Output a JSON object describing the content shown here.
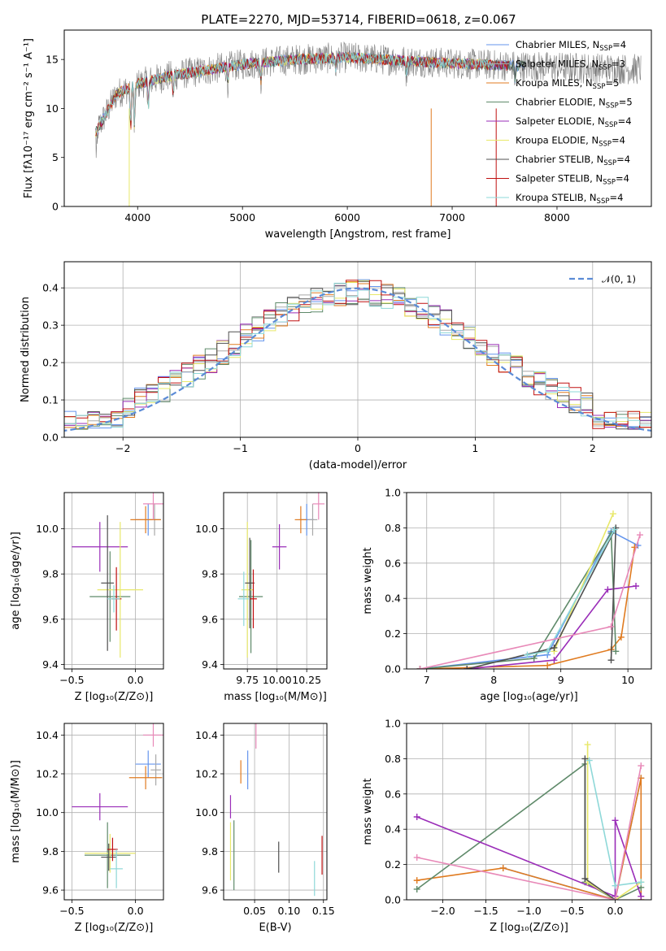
{
  "figure": {
    "title": "PLATE=2270, MJD=53714, FIBERID=0618, z=0.067"
  },
  "palette": [
    "#6495ED",
    "#A9A9A9",
    "#E07B20",
    "#5F8A6A",
    "#9A2DB8",
    "#E8E86A",
    "#505050",
    "#C01010",
    "#8ED8D8"
  ],
  "chart_data": [
    {
      "id": "spectrum",
      "type": "line",
      "xlabel": "wavelength [Angstrom, rest frame]",
      "ylabel": "Flux [fλ10⁻¹⁷ erg cm⁻² s⁻¹ A⁻¹]",
      "xlim": [
        3300,
        8900
      ],
      "ylim": [
        0,
        18
      ],
      "xticks": [
        4000,
        5000,
        6000,
        7000,
        8000
      ],
      "yticks": [
        0,
        5,
        10,
        15
      ],
      "grid": false,
      "legend": "top-right",
      "x_range": [
        3600,
        7700
      ],
      "data_line_color": "#808080",
      "data_line_x_range": [
        3600,
        8800
      ],
      "series": [
        {
          "name": "Chabrier MILES, N_SSP=4",
          "label": "Chabrier MILES, N",
          "sub": "SSP",
          "suffix": "=4",
          "color": "#6495ED"
        },
        {
          "name": "Salpeter MILES, N_SSP=3",
          "label": "Salpeter MILES, N",
          "sub": "SSP",
          "suffix": "=3",
          "color": "#A9A9A9"
        },
        {
          "name": "Kroupa MILES, N_SSP=5",
          "label": "Kroupa MILES, N",
          "sub": "SSP",
          "suffix": "=5",
          "color": "#E07B20"
        },
        {
          "name": "Chabrier ELODIE, N_SSP=5",
          "label": "Chabrier ELODIE, N",
          "sub": "SSP",
          "suffix": "=5",
          "color": "#5F8A6A"
        },
        {
          "name": "Salpeter ELODIE, N_SSP=4",
          "label": "Salpeter ELODIE, N",
          "sub": "SSP",
          "suffix": "=4",
          "color": "#9A2DB8"
        },
        {
          "name": "Kroupa ELODIE, N_SSP=4",
          "label": "Kroupa ELODIE, N",
          "sub": "SSP",
          "suffix": "=4",
          "color": "#E8E86A"
        },
        {
          "name": "Chabrier STELIB, N_SSP=4",
          "label": "Chabrier STELIB, N",
          "sub": "SSP",
          "suffix": "=4",
          "color": "#505050"
        },
        {
          "name": "Salpeter STELIB, N_SSP=4",
          "label": "Salpeter STELIB, N",
          "sub": "SSP",
          "suffix": "=4",
          "color": "#C01010"
        },
        {
          "name": "Kroupa STELIB, N_SSP=4",
          "label": "Kroupa STELIB, N",
          "sub": "SSP",
          "suffix": "=4",
          "color": "#8ED8D8"
        }
      ],
      "continuum": [
        [
          3600,
          7.5
        ],
        [
          3700,
          9.5
        ],
        [
          3800,
          11.5
        ],
        [
          4000,
          12.5
        ],
        [
          4300,
          13.3
        ],
        [
          4600,
          13.8
        ],
        [
          5000,
          14.5
        ],
        [
          5500,
          15.0
        ],
        [
          6000,
          15.2
        ],
        [
          6500,
          14.9
        ],
        [
          7000,
          14.6
        ],
        [
          7500,
          14.4
        ],
        [
          8000,
          14.2
        ],
        [
          8800,
          14.0
        ]
      ]
    },
    {
      "id": "residuals",
      "type": "step",
      "xlabel": "(data-model)/error",
      "ylabel": "Normed distribution",
      "xlim": [
        -2.5,
        2.5
      ],
      "ylim": [
        0,
        0.47
      ],
      "xticks": [
        -2,
        -1,
        0,
        1,
        2
      ],
      "yticks": [
        0.0,
        0.1,
        0.2,
        0.3,
        0.4
      ],
      "grid": true,
      "legend": "top-right",
      "reference": {
        "label": "𝒩(0, 1)",
        "color": "#5B8BD6",
        "style": "dashed"
      },
      "bin_width": 0.1
    },
    {
      "id": "age_vs_Z",
      "type": "errorbar",
      "xlabel": "Z [log₁₀(Z/Z⊙)]",
      "ylabel": "age  [log₁₀(age/yr)]",
      "xlim": [
        -0.56,
        0.22
      ],
      "ylim": [
        9.38,
        10.16
      ],
      "xticks": [
        -0.5,
        0.0
      ],
      "yticks": [
        9.4,
        9.6,
        9.8,
        10.0
      ],
      "grid": true,
      "points": [
        {
          "x": 0.1,
          "y": 10.04,
          "xerr": 0.1,
          "yerr": 0.07,
          "color": "#6495ED"
        },
        {
          "x": 0.15,
          "y": 10.04,
          "xerr": 0.05,
          "yerr": 0.07,
          "color": "#A9A9A9"
        },
        {
          "x": 0.08,
          "y": 10.04,
          "xerr": 0.12,
          "yerr": 0.06,
          "color": "#E07B20"
        },
        {
          "x": -0.2,
          "y": 9.7,
          "xerr": 0.16,
          "yerr": 0.2,
          "color": "#5F8A6A"
        },
        {
          "x": -0.28,
          "y": 9.92,
          "xerr": 0.22,
          "yerr": 0.11,
          "color": "#9A2DB8"
        },
        {
          "x": -0.12,
          "y": 9.73,
          "xerr": 0.18,
          "yerr": 0.3,
          "color": "#E8E86A"
        },
        {
          "x": -0.22,
          "y": 9.76,
          "xerr": 0.05,
          "yerr": 0.3,
          "color": "#505050"
        },
        {
          "x": -0.15,
          "y": 9.69,
          "xerr": 0.04,
          "yerr": 0.14,
          "color": "#C01010"
        },
        {
          "x": -0.17,
          "y": 9.69,
          "xerr": 0.05,
          "yerr": 0.06,
          "color": "#8ED8D8"
        },
        {
          "x": 0.14,
          "y": 10.11,
          "xerr": 0.08,
          "yerr": 0.07,
          "color": "#E889B8"
        }
      ]
    },
    {
      "id": "age_vs_mass",
      "type": "errorbar",
      "xlabel": "mass [log₁₀(M/M⊙)]",
      "ylabel": "",
      "xlim": [
        9.55,
        10.42
      ],
      "ylim": [
        9.38,
        10.16
      ],
      "xticks": [
        9.75,
        10.0,
        10.25
      ],
      "yticks": [
        9.4,
        9.6,
        9.8,
        10.0
      ],
      "grid": true,
      "points": [
        {
          "x": 10.25,
          "y": 10.04,
          "xerr": 0.06,
          "yerr": 0.07,
          "color": "#6495ED"
        },
        {
          "x": 10.3,
          "y": 10.04,
          "xerr": 0.04,
          "yerr": 0.07,
          "color": "#A9A9A9"
        },
        {
          "x": 10.2,
          "y": 10.04,
          "xerr": 0.05,
          "yerr": 0.06,
          "color": "#E07B20"
        },
        {
          "x": 9.78,
          "y": 9.7,
          "xerr": 0.1,
          "yerr": 0.25,
          "color": "#5F8A6A"
        },
        {
          "x": 10.02,
          "y": 9.92,
          "xerr": 0.06,
          "yerr": 0.1,
          "color": "#9A2DB8"
        },
        {
          "x": 9.75,
          "y": 9.73,
          "xerr": 0.05,
          "yerr": 0.3,
          "color": "#E8E86A"
        },
        {
          "x": 9.77,
          "y": 9.76,
          "xerr": 0.04,
          "yerr": 0.2,
          "color": "#505050"
        },
        {
          "x": 9.8,
          "y": 9.69,
          "xerr": 0.03,
          "yerr": 0.13,
          "color": "#C01010"
        },
        {
          "x": 9.72,
          "y": 9.69,
          "xerr": 0.05,
          "yerr": 0.12,
          "color": "#8ED8D8"
        },
        {
          "x": 10.35,
          "y": 10.11,
          "xerr": 0.05,
          "yerr": 0.07,
          "color": "#E889B8"
        }
      ]
    },
    {
      "id": "massweight_vs_age",
      "type": "line",
      "xlabel": "age  [log₁₀(age/yr)]",
      "ylabel": "mass weight",
      "xlim": [
        6.7,
        10.35
      ],
      "ylim": [
        0,
        1.0
      ],
      "xticks": [
        7,
        8,
        9,
        10
      ],
      "yticks": [
        0.0,
        0.2,
        0.4,
        0.6,
        0.8,
        1.0
      ],
      "grid": true,
      "series": [
        {
          "color": "#6495ED",
          "x": [
            6.9,
            8.8,
            9.75,
            10.15
          ],
          "y": [
            0.0,
            0.08,
            0.78,
            0.7
          ]
        },
        {
          "color": "#E07B20",
          "x": [
            6.9,
            8.8,
            9.75,
            9.9,
            10.1
          ],
          "y": [
            0.0,
            0.02,
            0.11,
            0.18,
            0.69
          ]
        },
        {
          "color": "#5F8A6A",
          "x": [
            6.9,
            8.6,
            9.75,
            9.82
          ],
          "y": [
            0.0,
            0.06,
            0.77,
            0.1
          ]
        },
        {
          "color": "#9A2DB8",
          "x": [
            7.6,
            8.9,
            9.7,
            10.12
          ],
          "y": [
            0.0,
            0.05,
            0.45,
            0.47
          ]
        },
        {
          "color": "#E8E86A",
          "x": [
            8.9,
            9.78
          ],
          "y": [
            0.1,
            0.88
          ]
        },
        {
          "color": "#505050",
          "x": [
            7.6,
            8.9,
            9.82,
            9.75
          ],
          "y": [
            0.0,
            0.12,
            0.8,
            0.05
          ]
        },
        {
          "color": "#8ED8D8",
          "x": [
            8.5,
            8.8,
            9.8
          ],
          "y": [
            0.08,
            0.1,
            0.79
          ]
        },
        {
          "color": "#E889B8",
          "x": [
            6.9,
            9.75,
            10.18
          ],
          "y": [
            0.0,
            0.24,
            0.76
          ]
        }
      ]
    },
    {
      "id": "mass_vs_Z",
      "type": "errorbar",
      "xlabel": "Z [log₁₀(Z/Z⊙)]",
      "ylabel": "mass [log₁₀(M/M⊙)]",
      "xlim": [
        -0.56,
        0.22
      ],
      "ylim": [
        9.55,
        10.46
      ],
      "xticks": [
        -0.5,
        0.0
      ],
      "yticks": [
        9.6,
        9.8,
        10.0,
        10.2,
        10.4
      ],
      "grid": true,
      "points": [
        {
          "x": 0.1,
          "y": 10.25,
          "xerr": 0.1,
          "yerr": 0.07,
          "color": "#6495ED"
        },
        {
          "x": 0.16,
          "y": 10.22,
          "xerr": 0.04,
          "yerr": 0.08,
          "color": "#A9A9A9"
        },
        {
          "x": 0.08,
          "y": 10.18,
          "xerr": 0.13,
          "yerr": 0.06,
          "color": "#E07B20"
        },
        {
          "x": -0.22,
          "y": 9.78,
          "xerr": 0.18,
          "yerr": 0.17,
          "color": "#5F8A6A"
        },
        {
          "x": -0.28,
          "y": 10.03,
          "xerr": 0.22,
          "yerr": 0.07,
          "color": "#9A2DB8"
        },
        {
          "x": -0.2,
          "y": 9.79,
          "xerr": 0.2,
          "yerr": 0.1,
          "color": "#E8E86A"
        },
        {
          "x": -0.21,
          "y": 9.77,
          "xerr": 0.06,
          "yerr": 0.07,
          "color": "#505050"
        },
        {
          "x": -0.18,
          "y": 9.81,
          "xerr": 0.04,
          "yerr": 0.06,
          "color": "#C01010"
        },
        {
          "x": -0.15,
          "y": 9.71,
          "xerr": 0.05,
          "yerr": 0.1,
          "color": "#8ED8D8"
        },
        {
          "x": 0.14,
          "y": 10.4,
          "xerr": 0.08,
          "yerr": 0.06,
          "color": "#E889B8"
        }
      ]
    },
    {
      "id": "mass_vs_EBV",
      "type": "errorbar",
      "xlabel": "E(B-V)",
      "ylabel": "",
      "xlim": [
        0.005,
        0.155
      ],
      "ylim": [
        9.55,
        10.46
      ],
      "xticks": [
        0.05,
        0.1,
        0.15
      ],
      "yticks": [
        9.6,
        9.8,
        10.0,
        10.2,
        10.4
      ],
      "grid": true,
      "points": [
        {
          "x": 0.04,
          "y": 10.22,
          "xerr": 0,
          "yerr": 0.1,
          "color": "#6495ED"
        },
        {
          "x": 0.03,
          "y": 10.21,
          "xerr": 0,
          "yerr": 0.06,
          "color": "#E07B20"
        },
        {
          "x": 0.02,
          "y": 9.78,
          "xerr": 0,
          "yerr": 0.18,
          "color": "#5F8A6A"
        },
        {
          "x": 0.015,
          "y": 10.03,
          "xerr": 0,
          "yerr": 0.06,
          "color": "#9A2DB8"
        },
        {
          "x": 0.015,
          "y": 9.8,
          "xerr": 0,
          "yerr": 0.15,
          "color": "#E8E86A"
        },
        {
          "x": 0.085,
          "y": 9.77,
          "xerr": 0,
          "yerr": 0.08,
          "color": "#505050"
        },
        {
          "x": 0.148,
          "y": 9.78,
          "xerr": 0,
          "yerr": 0.1,
          "color": "#C01010"
        },
        {
          "x": 0.137,
          "y": 9.66,
          "xerr": 0,
          "yerr": 0.09,
          "color": "#8ED8D8"
        },
        {
          "x": 0.052,
          "y": 10.4,
          "xerr": 0,
          "yerr": 0.07,
          "color": "#E889B8"
        }
      ]
    },
    {
      "id": "massweight_vs_Z",
      "type": "line",
      "xlabel": "Z [log₁₀(Z/Z⊙)]",
      "ylabel": "mass weight",
      "xlim": [
        -2.42,
        0.42
      ],
      "ylim": [
        0,
        1.0
      ],
      "xticks": [
        -2.0,
        -1.5,
        -1.0,
        -0.5,
        0.0
      ],
      "yticks": [
        0.0,
        0.2,
        0.4,
        0.6,
        0.8,
        1.0
      ],
      "grid": true,
      "series": [
        {
          "color": "#6495ED",
          "x": [
            -1.3,
            0.0,
            0.3
          ],
          "y": [
            0.18,
            0.0,
            0.69
          ]
        },
        {
          "color": "#E07B20",
          "x": [
            -2.3,
            -1.3,
            0.0,
            0.3,
            0.3
          ],
          "y": [
            0.11,
            0.18,
            0.0,
            0.69,
            0.0
          ]
        },
        {
          "color": "#5F8A6A",
          "x": [
            -2.3,
            -0.35,
            -0.35,
            0.0,
            0.3
          ],
          "y": [
            0.06,
            0.77,
            0.1,
            0.0,
            0.07
          ]
        },
        {
          "color": "#9A2DB8",
          "x": [
            -2.3,
            0.0,
            0.0,
            0.3
          ],
          "y": [
            0.47,
            0.02,
            0.45,
            0.02
          ]
        },
        {
          "color": "#E8E86A",
          "x": [
            -0.32,
            -0.32,
            0.0,
            0.3
          ],
          "y": [
            0.88,
            0.1,
            0.0,
            0.1
          ]
        },
        {
          "color": "#505050",
          "x": [
            -0.35,
            -0.35,
            0.0
          ],
          "y": [
            0.8,
            0.12,
            0.0
          ]
        },
        {
          "color": "#8ED8D8",
          "x": [
            -0.3,
            0.0,
            0.3
          ],
          "y": [
            0.79,
            0.08,
            0.1
          ]
        },
        {
          "color": "#E889B8",
          "x": [
            -2.3,
            0.0,
            0.3
          ],
          "y": [
            0.24,
            0.0,
            0.76
          ]
        }
      ]
    }
  ]
}
